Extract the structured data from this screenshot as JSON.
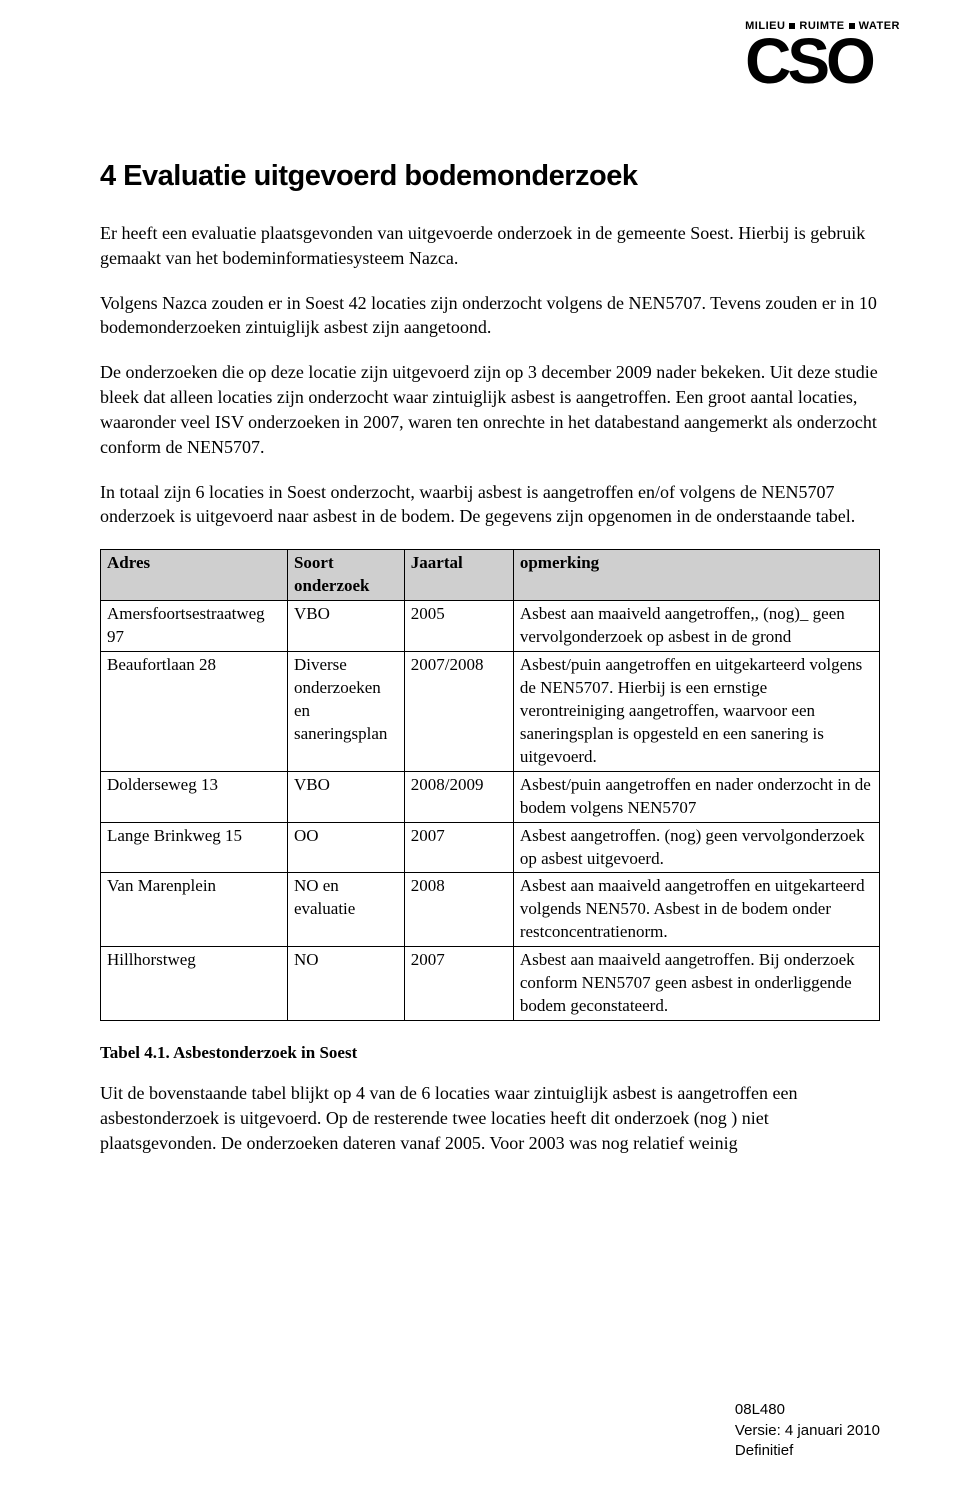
{
  "logo": {
    "tag_parts": [
      "MILIEU",
      "RUIMTE",
      "WATER"
    ],
    "name": "CSO"
  },
  "title": "4  Evaluatie uitgevoerd bodemonderzoek",
  "paragraphs": {
    "p1": "Er heeft een evaluatie plaatsgevonden van uitgevoerde onderzoek in de gemeente Soest. Hierbij is gebruik gemaakt van het bodeminformatiesysteem Nazca.",
    "p2": "Volgens Nazca zouden er in Soest 42 locaties zijn onderzocht volgens de NEN5707. Tevens zouden er in 10 bodemonderzoeken zintuiglijk asbest zijn aangetoond.",
    "p3": "De onderzoeken die op deze locatie zijn uitgevoerd zijn op 3 december 2009 nader bekeken. Uit deze studie bleek dat alleen locaties zijn onderzocht waar zintuiglijk asbest is aangetroffen. Een groot aantal locaties, waaronder veel ISV onderzoeken in 2007, waren ten onrechte in het databestand aangemerkt als onderzocht conform de NEN5707.",
    "p4": "In totaal zijn 6 locaties in Soest onderzocht, waarbij asbest is aangetroffen en/of volgens de NEN5707 onderzoek is uitgevoerd naar asbest in de bodem. De gegevens zijn opgenomen in de onderstaande tabel."
  },
  "table": {
    "headers": {
      "adres": "Adres",
      "soort": "Soort onderzoek",
      "jaartal": "Jaartal",
      "opmerking": "opmerking"
    },
    "rows": [
      {
        "adres": "Amersfoortsestraatweg 97",
        "soort": "VBO",
        "jaartal": "2005",
        "opmerking": "Asbest aan maaiveld aangetroffen,, (nog)_ geen vervolgonderzoek op asbest in de grond"
      },
      {
        "adres": "Beaufortlaan 28",
        "soort": "Diverse onderzoeken en saneringsplan",
        "jaartal": "2007/2008",
        "opmerking": "Asbest/puin aangetroffen en uitgekarteerd volgens de NEN5707. Hierbij is een ernstige verontreiniging aangetroffen, waarvoor een saneringsplan is opgesteld en een sanering is uitgevoerd."
      },
      {
        "adres": "Dolderseweg 13",
        "soort": "VBO",
        "jaartal": "2008/2009",
        "opmerking": "Asbest/puin aangetroffen en nader onderzocht in de bodem volgens NEN5707"
      },
      {
        "adres": "Lange Brinkweg 15",
        "soort": "OO",
        "jaartal": "2007",
        "opmerking": "Asbest aangetroffen. (nog) geen vervolgonderzoek op asbest uitgevoerd."
      },
      {
        "adres": "Van Marenplein",
        "soort": "NO en evaluatie",
        "jaartal": "2008",
        "opmerking": "Asbest aan maaiveld aangetroffen en uitgekarteerd volgends NEN570. Asbest in de bodem onder restconcentratienorm."
      },
      {
        "adres": "Hillhorstweg",
        "soort": "NO",
        "jaartal": "2007",
        "opmerking": "Asbest aan maaiveld aangetroffen. Bij onderzoek conform NEN5707 geen asbest in onderliggende bodem  geconstateerd."
      }
    ]
  },
  "table_caption": "Tabel 4.1. Asbestonderzoek in Soest",
  "closing_paragraph": "Uit de bovenstaande tabel blijkt op 4 van de 6 locaties waar zintuiglijk asbest is aangetroffen een asbestonderzoek is uitgevoerd. Op de resterende twee locaties heeft dit onderzoek (nog ) niet plaatsgevonden. De onderzoeken dateren vanaf 2005. Voor 2003 was nog relatief weinig",
  "footer": {
    "code": "08L480",
    "version": "Versie: 4 januari 2010",
    "status": "Definitief"
  }
}
